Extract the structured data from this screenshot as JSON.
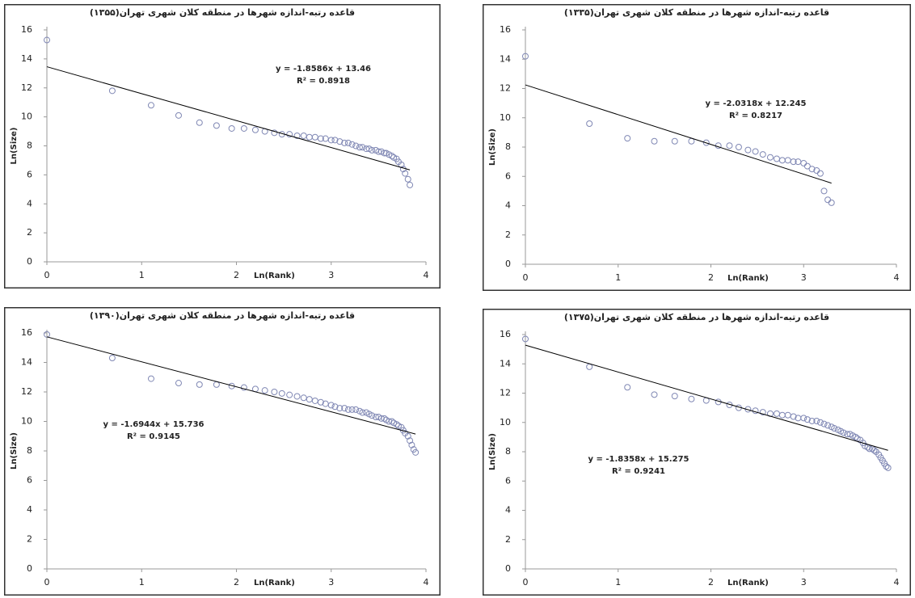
{
  "chart_data": [
    {
      "type": "scatter",
      "title": "قاعده رتبه-اندازه شهرها در منطقه کلان شهری تهران(۱۳۵۵)",
      "x_label": "Ln(Rank)",
      "y_label": "Ln(Size)",
      "x": [
        0,
        0.69,
        1.1,
        1.39,
        1.61,
        1.79,
        1.95,
        2.08,
        2.2,
        2.3,
        2.4,
        2.48,
        2.56,
        2.64,
        2.71,
        2.77,
        2.83,
        2.89,
        2.94,
        3.0,
        3.04,
        3.09,
        3.14,
        3.18,
        3.22,
        3.26,
        3.3,
        3.33,
        3.37,
        3.4,
        3.43,
        3.47,
        3.5,
        3.53,
        3.56,
        3.58,
        3.61,
        3.64,
        3.66,
        3.69,
        3.71,
        3.74,
        3.76,
        3.78,
        3.81,
        3.83
      ],
      "values": [
        15.3,
        11.8,
        10.8,
        10.1,
        9.6,
        9.4,
        9.2,
        9.2,
        9.1,
        9.0,
        8.9,
        8.8,
        8.8,
        8.7,
        8.7,
        8.6,
        8.6,
        8.5,
        8.5,
        8.4,
        8.4,
        8.3,
        8.2,
        8.2,
        8.1,
        8.0,
        7.9,
        7.9,
        7.8,
        7.8,
        7.7,
        7.7,
        7.6,
        7.6,
        7.5,
        7.5,
        7.4,
        7.3,
        7.2,
        7.1,
        6.9,
        6.7,
        6.4,
        6.1,
        5.7,
        5.3
      ],
      "color": "#8088b4",
      "xlim": [
        0,
        4
      ],
      "ylim": [
        0,
        16
      ],
      "xticks": [
        0,
        1,
        2,
        3,
        4
      ],
      "yticks": [
        0,
        2,
        4,
        6,
        8,
        10,
        12,
        14,
        16
      ],
      "grid": false,
      "trendline": {
        "slope": -1.8586,
        "intercept": 13.46,
        "color": "#000000",
        "equation": "y = -1.8586x + 13.46",
        "r_squared": "R² = 0.8918"
      }
    },
    {
      "type": "scatter",
      "title": "قاعده رتبه-اندازه شهرها در منطقه کلان شهری تهران(۱۳۳۵)",
      "x_label": "Ln(Rank)",
      "y_label": "Ln(Size)",
      "x": [
        0,
        0.69,
        1.1,
        1.39,
        1.61,
        1.79,
        1.95,
        2.08,
        2.2,
        2.3,
        2.4,
        2.48,
        2.56,
        2.64,
        2.71,
        2.77,
        2.83,
        2.89,
        2.94,
        3.0,
        3.04,
        3.09,
        3.14,
        3.18,
        3.22,
        3.26,
        3.3
      ],
      "values": [
        14.2,
        9.6,
        8.6,
        8.4,
        8.4,
        8.4,
        8.3,
        8.1,
        8.1,
        8.0,
        7.8,
        7.7,
        7.5,
        7.3,
        7.2,
        7.1,
        7.1,
        7.0,
        7.0,
        6.9,
        6.7,
        6.5,
        6.4,
        6.2,
        5.0,
        4.4,
        4.2
      ],
      "color": "#8088b4",
      "xlim": [
        0,
        4
      ],
      "ylim": [
        0,
        16
      ],
      "xticks": [
        0,
        1,
        2,
        3,
        4
      ],
      "yticks": [
        0,
        2,
        4,
        6,
        8,
        10,
        12,
        14,
        16
      ],
      "grid": false,
      "trendline": {
        "slope": -2.0318,
        "intercept": 12.245,
        "color": "#000000",
        "equation": "y = -2.0318x + 12.245",
        "r_squared": "R² = 0.8217"
      }
    },
    {
      "type": "scatter",
      "title": "قاعده رتبه-اندازه شهرها در منطقه کلان شهری تهران(۱۳۹۰)",
      "x_label": "Ln(Rank)",
      "y_label": "Ln(Size)",
      "x": [
        0,
        0.69,
        1.1,
        1.39,
        1.61,
        1.79,
        1.95,
        2.08,
        2.2,
        2.3,
        2.4,
        2.48,
        2.56,
        2.64,
        2.71,
        2.77,
        2.83,
        2.89,
        2.94,
        3.0,
        3.04,
        3.09,
        3.14,
        3.18,
        3.22,
        3.26,
        3.3,
        3.33,
        3.37,
        3.4,
        3.43,
        3.47,
        3.5,
        3.53,
        3.56,
        3.58,
        3.61,
        3.64,
        3.66,
        3.69,
        3.71,
        3.74,
        3.76,
        3.78,
        3.81,
        3.83,
        3.85,
        3.87,
        3.89
      ],
      "values": [
        15.9,
        14.3,
        12.9,
        12.6,
        12.5,
        12.5,
        12.4,
        12.3,
        12.2,
        12.1,
        12.0,
        11.9,
        11.8,
        11.7,
        11.6,
        11.5,
        11.4,
        11.3,
        11.2,
        11.1,
        11.0,
        10.9,
        10.9,
        10.8,
        10.8,
        10.8,
        10.7,
        10.6,
        10.6,
        10.5,
        10.4,
        10.3,
        10.3,
        10.2,
        10.2,
        10.1,
        10.0,
        10.0,
        9.9,
        9.8,
        9.7,
        9.6,
        9.4,
        9.2,
        9.0,
        8.7,
        8.4,
        8.1,
        7.9
      ],
      "color": "#8088b4",
      "xlim": [
        0,
        4
      ],
      "ylim": [
        0,
        16
      ],
      "xticks": [
        0,
        1,
        2,
        3,
        4
      ],
      "yticks": [
        0,
        2,
        4,
        6,
        8,
        10,
        12,
        14,
        16
      ],
      "grid": false,
      "trendline": {
        "slope": -1.6944,
        "intercept": 15.736,
        "color": "#000000",
        "equation": "y = -1.6944x + 15.736",
        "r_squared": "R² = 0.9145"
      }
    },
    {
      "type": "scatter",
      "title": "قاعده رتبه-اندازه شهرها در منطقه کلان شهری تهران(۱۳۷۵)",
      "x_label": "Ln(Rank)",
      "y_label": "Ln(Size)",
      "x": [
        0,
        0.69,
        1.1,
        1.39,
        1.61,
        1.79,
        1.95,
        2.08,
        2.2,
        2.3,
        2.4,
        2.48,
        2.56,
        2.64,
        2.71,
        2.77,
        2.83,
        2.89,
        2.94,
        3.0,
        3.04,
        3.09,
        3.14,
        3.18,
        3.22,
        3.26,
        3.3,
        3.33,
        3.37,
        3.4,
        3.43,
        3.47,
        3.5,
        3.53,
        3.56,
        3.58,
        3.61,
        3.64,
        3.66,
        3.69,
        3.71,
        3.74,
        3.76,
        3.78,
        3.81,
        3.83,
        3.85,
        3.87,
        3.89,
        3.91
      ],
      "values": [
        15.7,
        13.8,
        12.4,
        11.9,
        11.8,
        11.6,
        11.5,
        11.4,
        11.2,
        11.0,
        10.9,
        10.8,
        10.7,
        10.6,
        10.6,
        10.5,
        10.5,
        10.4,
        10.3,
        10.3,
        10.2,
        10.1,
        10.1,
        10.0,
        9.9,
        9.8,
        9.7,
        9.6,
        9.5,
        9.4,
        9.3,
        9.2,
        9.2,
        9.1,
        9.0,
        8.9,
        8.8,
        8.6,
        8.4,
        8.3,
        8.2,
        8.2,
        8.1,
        8.0,
        7.8,
        7.6,
        7.4,
        7.2,
        7.0,
        6.9
      ],
      "color": "#8088b4",
      "xlim": [
        0,
        4
      ],
      "ylim": [
        0,
        16
      ],
      "xticks": [
        0,
        1,
        2,
        3,
        4
      ],
      "yticks": [
        0,
        2,
        4,
        6,
        8,
        10,
        12,
        14,
        16
      ],
      "grid": false,
      "trendline": {
        "slope": -1.8358,
        "intercept": 15.275,
        "color": "#000000",
        "equation": "y = -1.8358x + 15.275",
        "r_squared": "R² = 0.9241"
      }
    }
  ]
}
